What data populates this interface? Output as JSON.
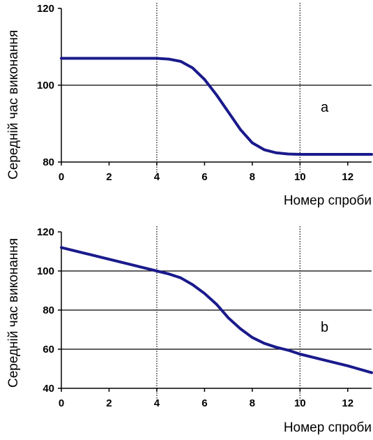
{
  "chart_data": [
    {
      "type": "line",
      "panel_label": "a",
      "xlabel": "Номер спроби",
      "ylabel": "Середній час виконання",
      "xlim": [
        0,
        13
      ],
      "ylim": [
        80,
        120
      ],
      "xticks": [
        0,
        2,
        4,
        6,
        8,
        10,
        12
      ],
      "yticks": [
        80,
        100,
        120
      ],
      "hgrid": [
        100
      ],
      "vlines": [
        4,
        10
      ],
      "line_color": "#1a1a8c",
      "series": [
        {
          "x": [
            0,
            1,
            2,
            3,
            4,
            4.5,
            5,
            5.5,
            6,
            6.5,
            7,
            7.5,
            8,
            8.5,
            9,
            9.5,
            10,
            10.5,
            11,
            12,
            13
          ],
          "y": [
            107,
            107,
            107,
            107,
            107,
            106.8,
            106.2,
            104.5,
            101.5,
            97.5,
            93,
            88.5,
            85,
            83.2,
            82.4,
            82.1,
            82,
            82,
            82,
            82,
            82
          ]
        }
      ]
    },
    {
      "type": "line",
      "panel_label": "b",
      "xlabel": "Номер спроби",
      "ylabel": "Середній час виконання",
      "xlim": [
        0,
        13
      ],
      "ylim": [
        40,
        120
      ],
      "xticks": [
        0,
        2,
        4,
        6,
        8,
        10,
        12
      ],
      "yticks": [
        40,
        60,
        80,
        100,
        120
      ],
      "hgrid": [
        60,
        80,
        100
      ],
      "vlines": [
        4,
        10
      ],
      "line_color": "#1a1a8c",
      "series": [
        {
          "x": [
            0,
            1,
            2,
            3,
            4,
            4.5,
            5,
            5.5,
            6,
            6.5,
            7,
            7.5,
            8,
            8.5,
            9,
            9.5,
            10,
            11,
            12,
            13
          ],
          "y": [
            112,
            109,
            106,
            103,
            100,
            98.5,
            96.5,
            93,
            88.5,
            83,
            76,
            70.5,
            66,
            63,
            61,
            59.5,
            57.5,
            54.5,
            51.5,
            48
          ]
        }
      ]
    }
  ]
}
